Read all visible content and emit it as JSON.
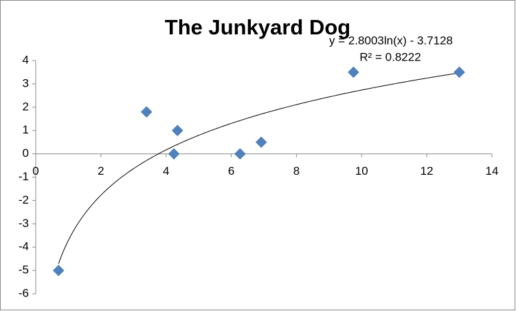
{
  "chart_data": {
    "type": "scatter",
    "title": "The Junkyard Dog",
    "x": [
      0.7,
      3.4,
      4.35,
      4.24,
      6.27,
      6.92,
      9.75,
      13.0
    ],
    "values": [
      -5,
      1.8,
      1.0,
      0,
      0,
      0.5,
      3.5,
      3.5
    ],
    "color": "#4f81bd",
    "xlim": [
      0,
      14
    ],
    "xticks": [
      0,
      2,
      4,
      6,
      8,
      10,
      12,
      14
    ],
    "ylim": [
      -6,
      4
    ],
    "yticks": [
      -6,
      -5,
      -4,
      -3,
      -2,
      -1,
      0,
      1,
      2,
      3,
      4
    ],
    "grid": false,
    "trendline": {
      "type": "log",
      "coefficients": [
        2.8003,
        -3.7128
      ],
      "equation": "y = 2.8003ln(x) - 3.7128",
      "r2": "R² = 0.8222"
    }
  }
}
